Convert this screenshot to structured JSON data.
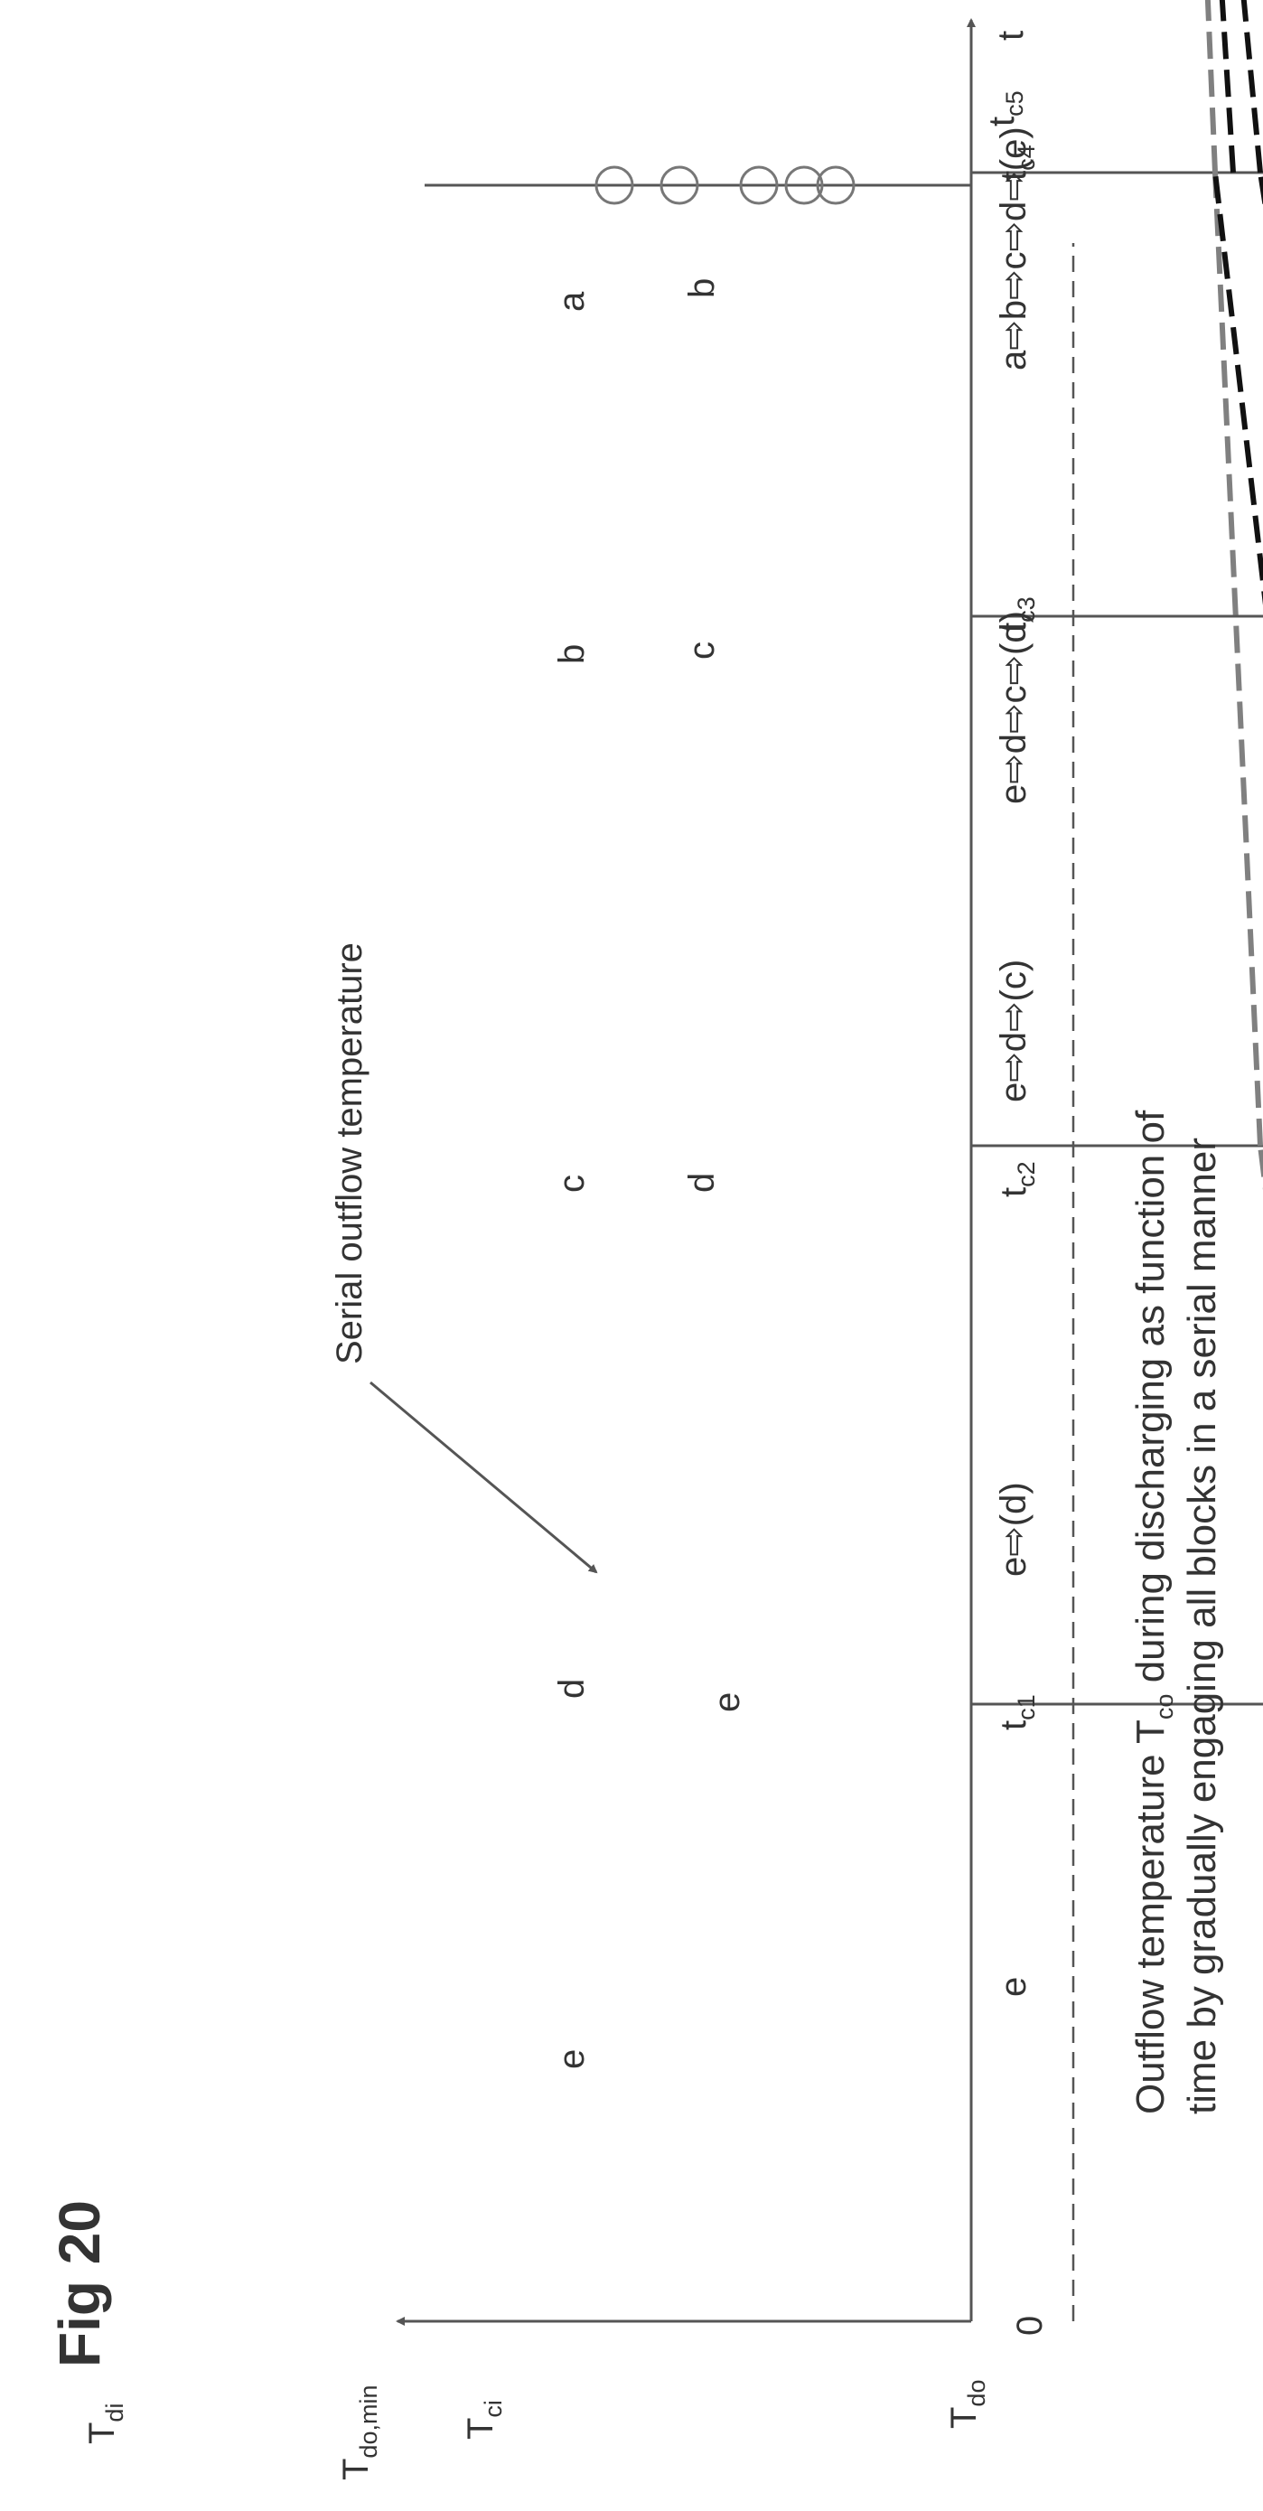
{
  "figure_label": "Fig 20",
  "axes": {
    "y_axis": {
      "symbol": "T",
      "sub": "do"
    },
    "x_axis": {
      "symbol": "t"
    },
    "origin": "0"
  },
  "levels": [
    {
      "id": "Tci",
      "symbol": "T",
      "sub": "ci"
    },
    {
      "id": "Tdomin",
      "symbol": "T",
      "sub": "do,min"
    },
    {
      "id": "Tdi",
      "symbol": "T",
      "sub": "di"
    }
  ],
  "time_marks": [
    {
      "id": "tc1",
      "symbol": "t",
      "sub": "c1"
    },
    {
      "id": "tc2",
      "symbol": "t",
      "sub": "c2"
    },
    {
      "id": "tc3",
      "symbol": "t",
      "sub": "c3"
    },
    {
      "id": "tc4",
      "symbol": "t",
      "sub": "c4"
    },
    {
      "id": "tc5",
      "symbol": "t",
      "sub": "c5"
    }
  ],
  "interval_sequences": [
    {
      "id": "p0",
      "text": "e"
    },
    {
      "id": "p1",
      "text": "e⇨(d)"
    },
    {
      "id": "p2",
      "text": "e⇨d⇨(c)"
    },
    {
      "id": "p3",
      "text": "e⇨d⇨c⇨(d)"
    },
    {
      "id": "p4",
      "text": "a⇨b⇨c⇨d⇨(e)"
    }
  ],
  "block_labels": [
    "e",
    "e",
    "d",
    "d",
    "c",
    "c",
    "b",
    "b",
    "a"
  ],
  "annotation": "Serial outflow temperature",
  "caption": {
    "line1_prefix": "Outflow temperature T",
    "line1_sub": "co",
    "line1_suffix": " during discharging as function of",
    "line2": "time by gradually engaging all blocks in a serial manner"
  },
  "colors": {
    "axis": "#555555",
    "serial_line": "#808080",
    "black_dashed": "#111111",
    "grey_dashed": "#808080",
    "reference_dashed": "#555555"
  }
}
